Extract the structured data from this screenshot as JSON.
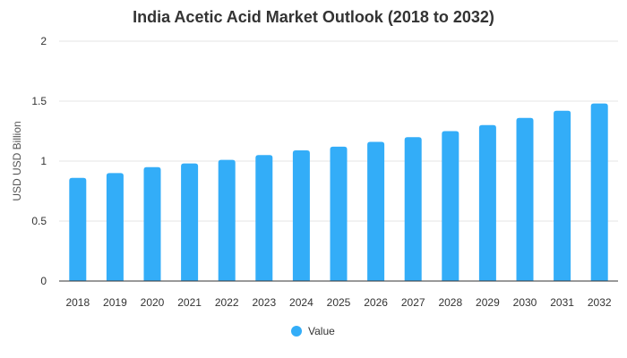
{
  "chart_data": {
    "type": "bar",
    "title": "India Acetic Acid Market Outlook (2018 to 2032)",
    "xlabel": "",
    "ylabel": "USD USD Billion",
    "categories": [
      "2018",
      "2019",
      "2020",
      "2021",
      "2022",
      "2023",
      "2024",
      "2025",
      "2026",
      "2027",
      "2028",
      "2029",
      "2030",
      "2031",
      "2032"
    ],
    "series": [
      {
        "name": "Value",
        "values": [
          0.86,
          0.9,
          0.95,
          0.98,
          1.01,
          1.05,
          1.09,
          1.12,
          1.16,
          1.2,
          1.25,
          1.3,
          1.36,
          1.42,
          1.48
        ],
        "color": "#33adf8"
      }
    ],
    "ylim": [
      0,
      2
    ],
    "yticks": [
      "0",
      "0.5",
      "1",
      "1.5",
      "2"
    ],
    "ytick_values": [
      0,
      0.5,
      1,
      1.5,
      2
    ],
    "grid": true,
    "legend": "bottom-center"
  }
}
